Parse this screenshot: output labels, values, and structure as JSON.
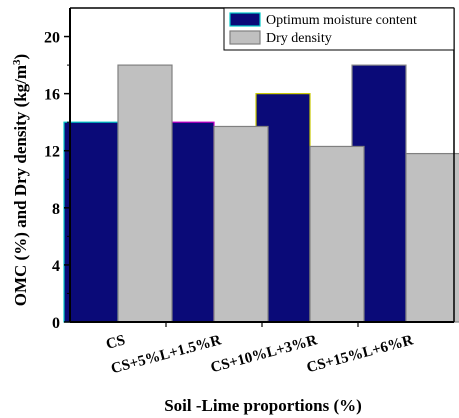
{
  "chart_data": {
    "type": "bar",
    "categories": [
      "CS",
      "CS+5%L+1.5%R",
      "CS+10%L+3%R",
      "CS+15%L+6%R"
    ],
    "series": [
      {
        "name": "Optimum moisture content",
        "values": [
          14.0,
          14.0,
          16.0,
          18.0
        ],
        "color": "#0a0a78",
        "edge_colors": [
          "#00c8c8",
          "#c800c8",
          "#c8c800",
          "#8a8a8a"
        ]
      },
      {
        "name": "Dry density",
        "values": [
          18.0,
          13.7,
          12.3,
          11.8
        ],
        "color": "#c0c0c0",
        "edge_colors": [
          "#808080",
          "#808080",
          "#808080",
          "#808080"
        ]
      }
    ],
    "xlabel": "Soil -Lime proportions (%)",
    "ylabel": "OMC (%) and Dry density (kg/m",
    "ylabel_superscript": "3",
    "ylabel_suffix": ")",
    "ylim": [
      0,
      22
    ],
    "yticks": [
      0,
      4,
      8,
      12,
      16,
      20
    ],
    "yticks_minor": [
      2,
      6,
      10,
      14,
      18
    ],
    "legend_position": "top-right",
    "grid": false
  }
}
